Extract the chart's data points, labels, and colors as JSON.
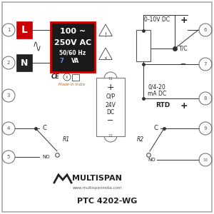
{
  "title": "PTC 4202-WG",
  "website": "www.multispanindia.com",
  "brand": "MULTISPAN",
  "made_in": "Made in India",
  "voltage_lines": [
    "100 ~",
    "250V AC",
    "50/60 Hz",
    "7VA"
  ],
  "voltage_bg": "#1a1a1a",
  "voltage_border": "#cc0000",
  "text_white": "#ffffff",
  "text_blue": "#5599ff",
  "text_dark": "#222222",
  "text_gray": "#555555",
  "text_orange": "#cc6600",
  "line_color": "#333333",
  "circle_edge": "#666666"
}
